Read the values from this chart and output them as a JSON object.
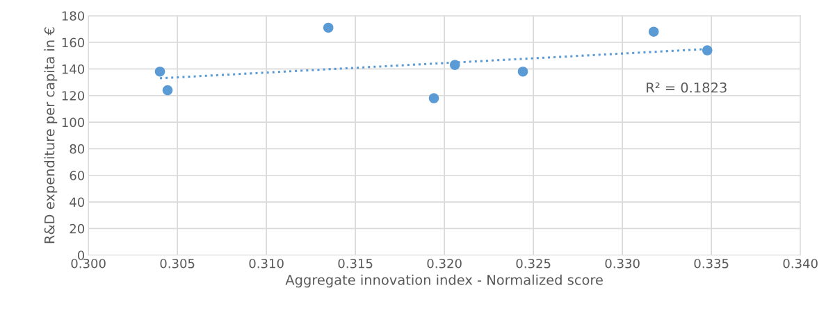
{
  "chart_data": {
    "type": "scatter",
    "xlabel": "Aggregate innovation index - Normalized score",
    "ylabel": "R&D expenditure per capita in €",
    "xlim": [
      0.3,
      0.34
    ],
    "xticks": [
      {
        "value": 0.3,
        "label": "0.300"
      },
      {
        "value": 0.305,
        "label": "0.305"
      },
      {
        "value": 0.31,
        "label": "0.310"
      },
      {
        "value": 0.315,
        "label": "0.315"
      },
      {
        "value": 0.32,
        "label": "0.320"
      },
      {
        "value": 0.325,
        "label": "0.325"
      },
      {
        "value": 0.33,
        "label": "0.330"
      },
      {
        "value": 0.335,
        "label": "0.335"
      },
      {
        "value": 0.34,
        "label": "0.340"
      }
    ],
    "ylim": [
      0,
      180
    ],
    "yticks": [
      0,
      20,
      40,
      60,
      80,
      100,
      120,
      140,
      160,
      180
    ],
    "grid": true,
    "marker": "circle",
    "series": [
      {
        "color": "#5b9bd5",
        "x": [
          0.30402,
          0.30445,
          0.31348,
          0.31941,
          0.32059,
          0.32441,
          0.33176,
          0.33477
        ],
        "values": [
          138,
          124,
          171,
          118,
          143,
          138,
          168,
          154
        ]
      },
      {
        "type": "line",
        "line_style": "dotted",
        "marker": "none",
        "color": "#5b9bd5",
        "x": [
          0.30402,
          0.33477
        ],
        "values": [
          133,
          155
        ]
      }
    ],
    "annotations": [
      "R² = 0.1823"
    ]
  }
}
